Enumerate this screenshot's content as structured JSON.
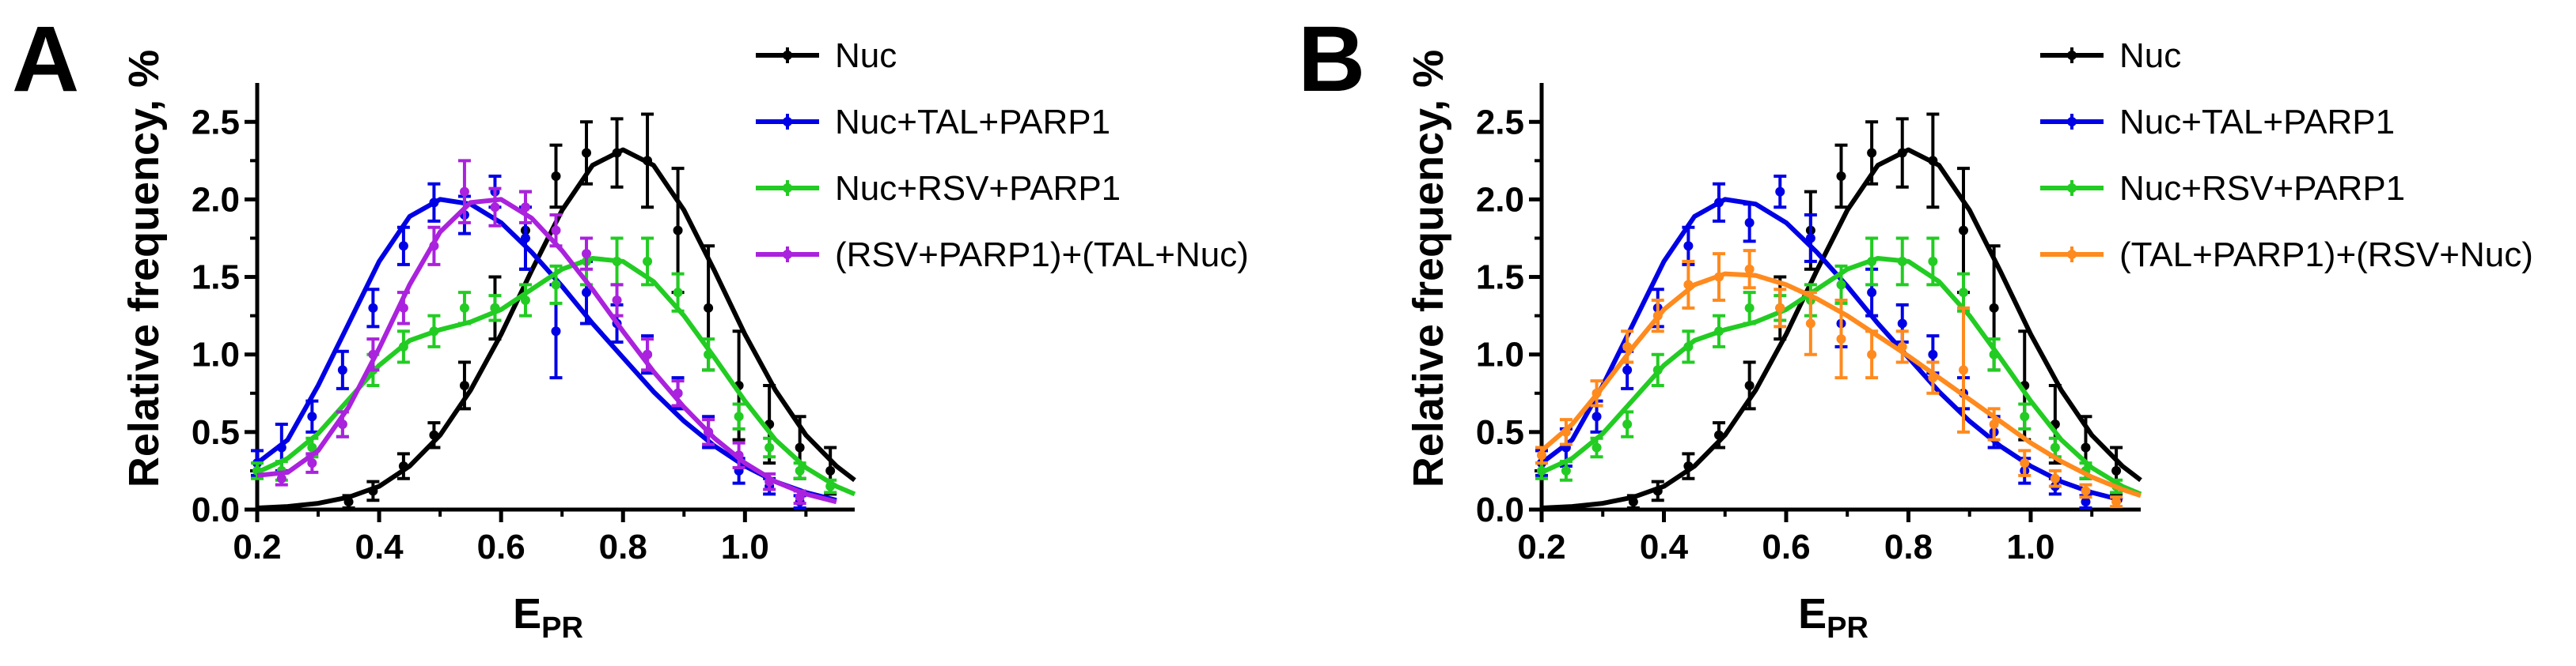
{
  "chart_data": [
    {
      "panel_label": "A",
      "type": "scatter",
      "xlabel_main": "E",
      "xlabel_sub": "PR",
      "ylabel": "Relative frequency, %",
      "xlim": [
        0.2,
        1.18
      ],
      "ylim": [
        0,
        2.7
      ],
      "xticks": [
        0.2,
        0.4,
        0.6,
        0.8,
        1.0
      ],
      "xtick_labels": [
        "0.2",
        "0.4",
        "0.6",
        "0.8",
        "1.0"
      ],
      "yticks": [
        0.0,
        0.5,
        1.0,
        1.5,
        2.0,
        2.5
      ],
      "ytick_labels": [
        "0.0",
        "0.5",
        "1.0",
        "1.5",
        "2.0",
        "2.5"
      ],
      "grid": false,
      "legend_position": "top-right",
      "series": [
        {
          "name": "Nuc",
          "color": "#000000",
          "x": [
            0.35,
            0.39,
            0.44,
            0.49,
            0.54,
            0.59,
            0.64,
            0.69,
            0.74,
            0.79,
            0.84,
            0.89,
            0.94,
            0.99,
            1.04,
            1.09,
            1.14
          ],
          "y": [
            0.05,
            0.12,
            0.28,
            0.48,
            0.8,
            1.3,
            1.8,
            2.15,
            2.3,
            2.3,
            2.25,
            1.8,
            1.3,
            0.8,
            0.55,
            0.4,
            0.25
          ],
          "err": [
            0.04,
            0.06,
            0.08,
            0.08,
            0.15,
            0.2,
            0.25,
            0.2,
            0.2,
            0.22,
            0.3,
            0.4,
            0.4,
            0.35,
            0.25,
            0.2,
            0.15
          ],
          "fit_x": [
            0.2,
            0.25,
            0.3,
            0.35,
            0.4,
            0.45,
            0.5,
            0.55,
            0.6,
            0.65,
            0.7,
            0.75,
            0.8,
            0.85,
            0.9,
            0.95,
            1.0,
            1.05,
            1.1,
            1.15,
            1.18
          ],
          "fit_y": [
            0.01,
            0.02,
            0.04,
            0.08,
            0.15,
            0.28,
            0.48,
            0.77,
            1.13,
            1.54,
            1.93,
            2.22,
            2.32,
            2.22,
            1.93,
            1.54,
            1.13,
            0.77,
            0.48,
            0.28,
            0.19
          ]
        },
        {
          "name": "Nuc+TAL+PARP1",
          "color": "#0000e6",
          "x": [
            0.2,
            0.24,
            0.29,
            0.34,
            0.39,
            0.44,
            0.49,
            0.54,
            0.59,
            0.64,
            0.69,
            0.74,
            0.79,
            0.84,
            0.89,
            0.94,
            0.99,
            1.04,
            1.09
          ],
          "y": [
            0.3,
            0.4,
            0.6,
            0.9,
            1.3,
            1.7,
            1.98,
            1.9,
            2.05,
            1.75,
            1.15,
            1.4,
            1.2,
            1.0,
            0.75,
            0.5,
            0.25,
            0.15,
            0.05
          ],
          "err": [
            0.08,
            0.15,
            0.1,
            0.12,
            0.12,
            0.12,
            0.12,
            0.12,
            0.1,
            0.2,
            0.3,
            0.2,
            0.12,
            0.12,
            0.1,
            0.1,
            0.08,
            0.05,
            0.04
          ],
          "fit_x": [
            0.2,
            0.25,
            0.3,
            0.35,
            0.4,
            0.45,
            0.5,
            0.55,
            0.6,
            0.65,
            0.7,
            0.75,
            0.8,
            0.85,
            0.9,
            0.95,
            1.0,
            1.05,
            1.1,
            1.15
          ],
          "fit_y": [
            0.3,
            0.45,
            0.8,
            1.2,
            1.6,
            1.89,
            2.0,
            1.97,
            1.85,
            1.66,
            1.44,
            1.2,
            0.98,
            0.76,
            0.57,
            0.41,
            0.28,
            0.18,
            0.11,
            0.06
          ]
        },
        {
          "name": "Nuc+RSV+PARP1",
          "color": "#22cc22",
          "x": [
            0.2,
            0.24,
            0.29,
            0.34,
            0.39,
            0.44,
            0.49,
            0.54,
            0.59,
            0.64,
            0.69,
            0.74,
            0.79,
            0.84,
            0.89,
            0.94,
            0.99,
            1.04,
            1.09,
            1.14
          ],
          "y": [
            0.25,
            0.25,
            0.4,
            0.55,
            0.9,
            1.05,
            1.15,
            1.3,
            1.3,
            1.35,
            1.45,
            1.6,
            1.6,
            1.6,
            1.4,
            1.0,
            0.6,
            0.4,
            0.25,
            0.15
          ],
          "err": [
            0.05,
            0.06,
            0.06,
            0.08,
            0.1,
            0.1,
            0.1,
            0.1,
            0.08,
            0.1,
            0.12,
            0.15,
            0.15,
            0.15,
            0.12,
            0.1,
            0.08,
            0.06,
            0.05,
            0.04
          ],
          "fit_x": [
            0.2,
            0.25,
            0.3,
            0.35,
            0.4,
            0.45,
            0.5,
            0.55,
            0.6,
            0.65,
            0.7,
            0.75,
            0.8,
            0.85,
            0.9,
            0.95,
            1.0,
            1.05,
            1.1,
            1.15,
            1.18
          ],
          "fit_y": [
            0.24,
            0.33,
            0.49,
            0.71,
            0.93,
            1.09,
            1.16,
            1.21,
            1.29,
            1.42,
            1.55,
            1.62,
            1.6,
            1.47,
            1.25,
            0.98,
            0.7,
            0.45,
            0.27,
            0.15,
            0.1
          ]
        },
        {
          "name": "(RSV+PARP1)+(TAL+Nuc)",
          "color": "#aa22dd",
          "x": [
            0.24,
            0.29,
            0.34,
            0.39,
            0.44,
            0.49,
            0.54,
            0.59,
            0.64,
            0.69,
            0.74,
            0.79,
            0.84,
            0.89,
            0.94,
            0.99,
            1.04,
            1.09
          ],
          "y": [
            0.2,
            0.3,
            0.55,
            1.0,
            1.3,
            1.7,
            2.05,
            1.95,
            1.95,
            1.8,
            1.65,
            1.35,
            1.0,
            0.75,
            0.5,
            0.35,
            0.18,
            0.08
          ],
          "err": [
            0.04,
            0.06,
            0.08,
            0.1,
            0.1,
            0.12,
            0.2,
            0.12,
            0.1,
            0.1,
            0.1,
            0.1,
            0.1,
            0.08,
            0.08,
            0.08,
            0.05,
            0.04
          ],
          "fit_x": [
            0.2,
            0.25,
            0.3,
            0.35,
            0.4,
            0.45,
            0.5,
            0.55,
            0.6,
            0.65,
            0.7,
            0.75,
            0.8,
            0.85,
            0.9,
            0.95,
            1.0,
            1.05,
            1.1,
            1.15
          ],
          "fit_y": [
            0.22,
            0.24,
            0.38,
            0.66,
            1.04,
            1.45,
            1.79,
            1.98,
            2.0,
            1.88,
            1.67,
            1.42,
            1.15,
            0.89,
            0.66,
            0.46,
            0.3,
            0.18,
            0.1,
            0.05
          ]
        }
      ]
    },
    {
      "panel_label": "B",
      "type": "scatter",
      "xlabel_main": "E",
      "xlabel_sub": "PR",
      "ylabel": "Relative frequency, %",
      "xlim": [
        0.2,
        1.18
      ],
      "ylim": [
        0,
        2.7
      ],
      "xticks": [
        0.2,
        0.4,
        0.6,
        0.8,
        1.0
      ],
      "xtick_labels": [
        "0.2",
        "0.4",
        "0.6",
        "0.8",
        "1.0"
      ],
      "yticks": [
        0.0,
        0.5,
        1.0,
        1.5,
        2.0,
        2.5
      ],
      "ytick_labels": [
        "0.0",
        "0.5",
        "1.0",
        "1.5",
        "2.0",
        "2.5"
      ],
      "grid": false,
      "legend_position": "top-right",
      "series": [
        {
          "name": "Nuc",
          "color": "#000000",
          "x": [
            0.35,
            0.39,
            0.44,
            0.49,
            0.54,
            0.59,
            0.64,
            0.69,
            0.74,
            0.79,
            0.84,
            0.89,
            0.94,
            0.99,
            1.04,
            1.09,
            1.14
          ],
          "y": [
            0.05,
            0.12,
            0.28,
            0.48,
            0.8,
            1.3,
            1.8,
            2.15,
            2.3,
            2.3,
            2.25,
            1.8,
            1.3,
            0.8,
            0.55,
            0.4,
            0.25
          ],
          "err": [
            0.04,
            0.06,
            0.08,
            0.08,
            0.15,
            0.2,
            0.25,
            0.2,
            0.2,
            0.22,
            0.3,
            0.4,
            0.4,
            0.35,
            0.25,
            0.2,
            0.15
          ],
          "fit_x": [
            0.2,
            0.25,
            0.3,
            0.35,
            0.4,
            0.45,
            0.5,
            0.55,
            0.6,
            0.65,
            0.7,
            0.75,
            0.8,
            0.85,
            0.9,
            0.95,
            1.0,
            1.05,
            1.1,
            1.15,
            1.18
          ],
          "fit_y": [
            0.01,
            0.02,
            0.04,
            0.08,
            0.15,
            0.28,
            0.48,
            0.77,
            1.13,
            1.54,
            1.93,
            2.22,
            2.32,
            2.22,
            1.93,
            1.54,
            1.13,
            0.77,
            0.48,
            0.28,
            0.19
          ]
        },
        {
          "name": "Nuc+TAL+PARP1",
          "color": "#0000e6",
          "x": [
            0.2,
            0.24,
            0.29,
            0.34,
            0.39,
            0.44,
            0.49,
            0.54,
            0.59,
            0.64,
            0.69,
            0.74,
            0.79,
            0.84,
            0.89,
            0.94,
            0.99,
            1.04,
            1.09
          ],
          "y": [
            0.3,
            0.4,
            0.6,
            0.9,
            1.3,
            1.7,
            1.98,
            1.85,
            2.05,
            1.75,
            1.2,
            1.4,
            1.2,
            1.0,
            0.75,
            0.5,
            0.25,
            0.15,
            0.05
          ],
          "err": [
            0.08,
            0.12,
            0.1,
            0.12,
            0.12,
            0.12,
            0.12,
            0.12,
            0.1,
            0.15,
            0.15,
            0.15,
            0.12,
            0.12,
            0.1,
            0.1,
            0.08,
            0.05,
            0.04
          ],
          "fit_x": [
            0.2,
            0.25,
            0.3,
            0.35,
            0.4,
            0.45,
            0.5,
            0.55,
            0.6,
            0.65,
            0.7,
            0.75,
            0.8,
            0.85,
            0.9,
            0.95,
            1.0,
            1.05,
            1.1,
            1.15
          ],
          "fit_y": [
            0.3,
            0.45,
            0.8,
            1.2,
            1.6,
            1.89,
            2.0,
            1.97,
            1.85,
            1.66,
            1.44,
            1.2,
            0.98,
            0.76,
            0.57,
            0.41,
            0.28,
            0.18,
            0.11,
            0.06
          ]
        },
        {
          "name": "Nuc+RSV+PARP1",
          "color": "#22cc22",
          "x": [
            0.2,
            0.24,
            0.29,
            0.34,
            0.39,
            0.44,
            0.49,
            0.54,
            0.59,
            0.64,
            0.69,
            0.74,
            0.79,
            0.84,
            0.89,
            0.94,
            0.99,
            1.04,
            1.09,
            1.14
          ],
          "y": [
            0.25,
            0.25,
            0.4,
            0.55,
            0.9,
            1.05,
            1.15,
            1.3,
            1.3,
            1.35,
            1.45,
            1.6,
            1.6,
            1.6,
            1.4,
            1.0,
            0.6,
            0.4,
            0.25,
            0.15
          ],
          "err": [
            0.05,
            0.06,
            0.06,
            0.08,
            0.1,
            0.1,
            0.1,
            0.1,
            0.08,
            0.1,
            0.12,
            0.15,
            0.15,
            0.15,
            0.12,
            0.1,
            0.08,
            0.06,
            0.05,
            0.04
          ],
          "fit_x": [
            0.2,
            0.25,
            0.3,
            0.35,
            0.4,
            0.45,
            0.5,
            0.55,
            0.6,
            0.65,
            0.7,
            0.75,
            0.8,
            0.85,
            0.9,
            0.95,
            1.0,
            1.05,
            1.1,
            1.15,
            1.18
          ],
          "fit_y": [
            0.24,
            0.33,
            0.49,
            0.71,
            0.93,
            1.09,
            1.16,
            1.21,
            1.29,
            1.42,
            1.55,
            1.62,
            1.6,
            1.47,
            1.25,
            0.98,
            0.7,
            0.45,
            0.27,
            0.15,
            0.1
          ]
        },
        {
          "name": "(TAL+PARP1)+(RSV+Nuc)",
          "color": "#ff8a1e",
          "x": [
            0.2,
            0.24,
            0.29,
            0.34,
            0.39,
            0.44,
            0.49,
            0.54,
            0.59,
            0.64,
            0.69,
            0.74,
            0.79,
            0.84,
            0.89,
            0.94,
            0.99,
            1.04,
            1.09,
            1.14
          ],
          "y": [
            0.35,
            0.5,
            0.75,
            1.05,
            1.25,
            1.45,
            1.5,
            1.55,
            1.3,
            1.2,
            1.1,
            1.0,
            1.05,
            0.85,
            0.9,
            0.55,
            0.3,
            0.2,
            0.12,
            0.05
          ],
          "err": [
            0.05,
            0.08,
            0.08,
            0.1,
            0.1,
            0.15,
            0.15,
            0.12,
            0.12,
            0.2,
            0.25,
            0.15,
            0.1,
            0.1,
            0.4,
            0.1,
            0.08,
            0.05,
            0.04,
            0.03
          ],
          "fit_x": [
            0.2,
            0.25,
            0.3,
            0.35,
            0.4,
            0.45,
            0.5,
            0.55,
            0.6,
            0.65,
            0.7,
            0.75,
            0.8,
            0.85,
            0.9,
            0.95,
            1.0,
            1.05,
            1.1,
            1.15,
            1.18
          ],
          "fit_y": [
            0.38,
            0.55,
            0.79,
            1.05,
            1.29,
            1.45,
            1.52,
            1.51,
            1.45,
            1.36,
            1.25,
            1.12,
            0.99,
            0.85,
            0.71,
            0.57,
            0.43,
            0.31,
            0.21,
            0.13,
            0.09
          ]
        }
      ]
    }
  ]
}
